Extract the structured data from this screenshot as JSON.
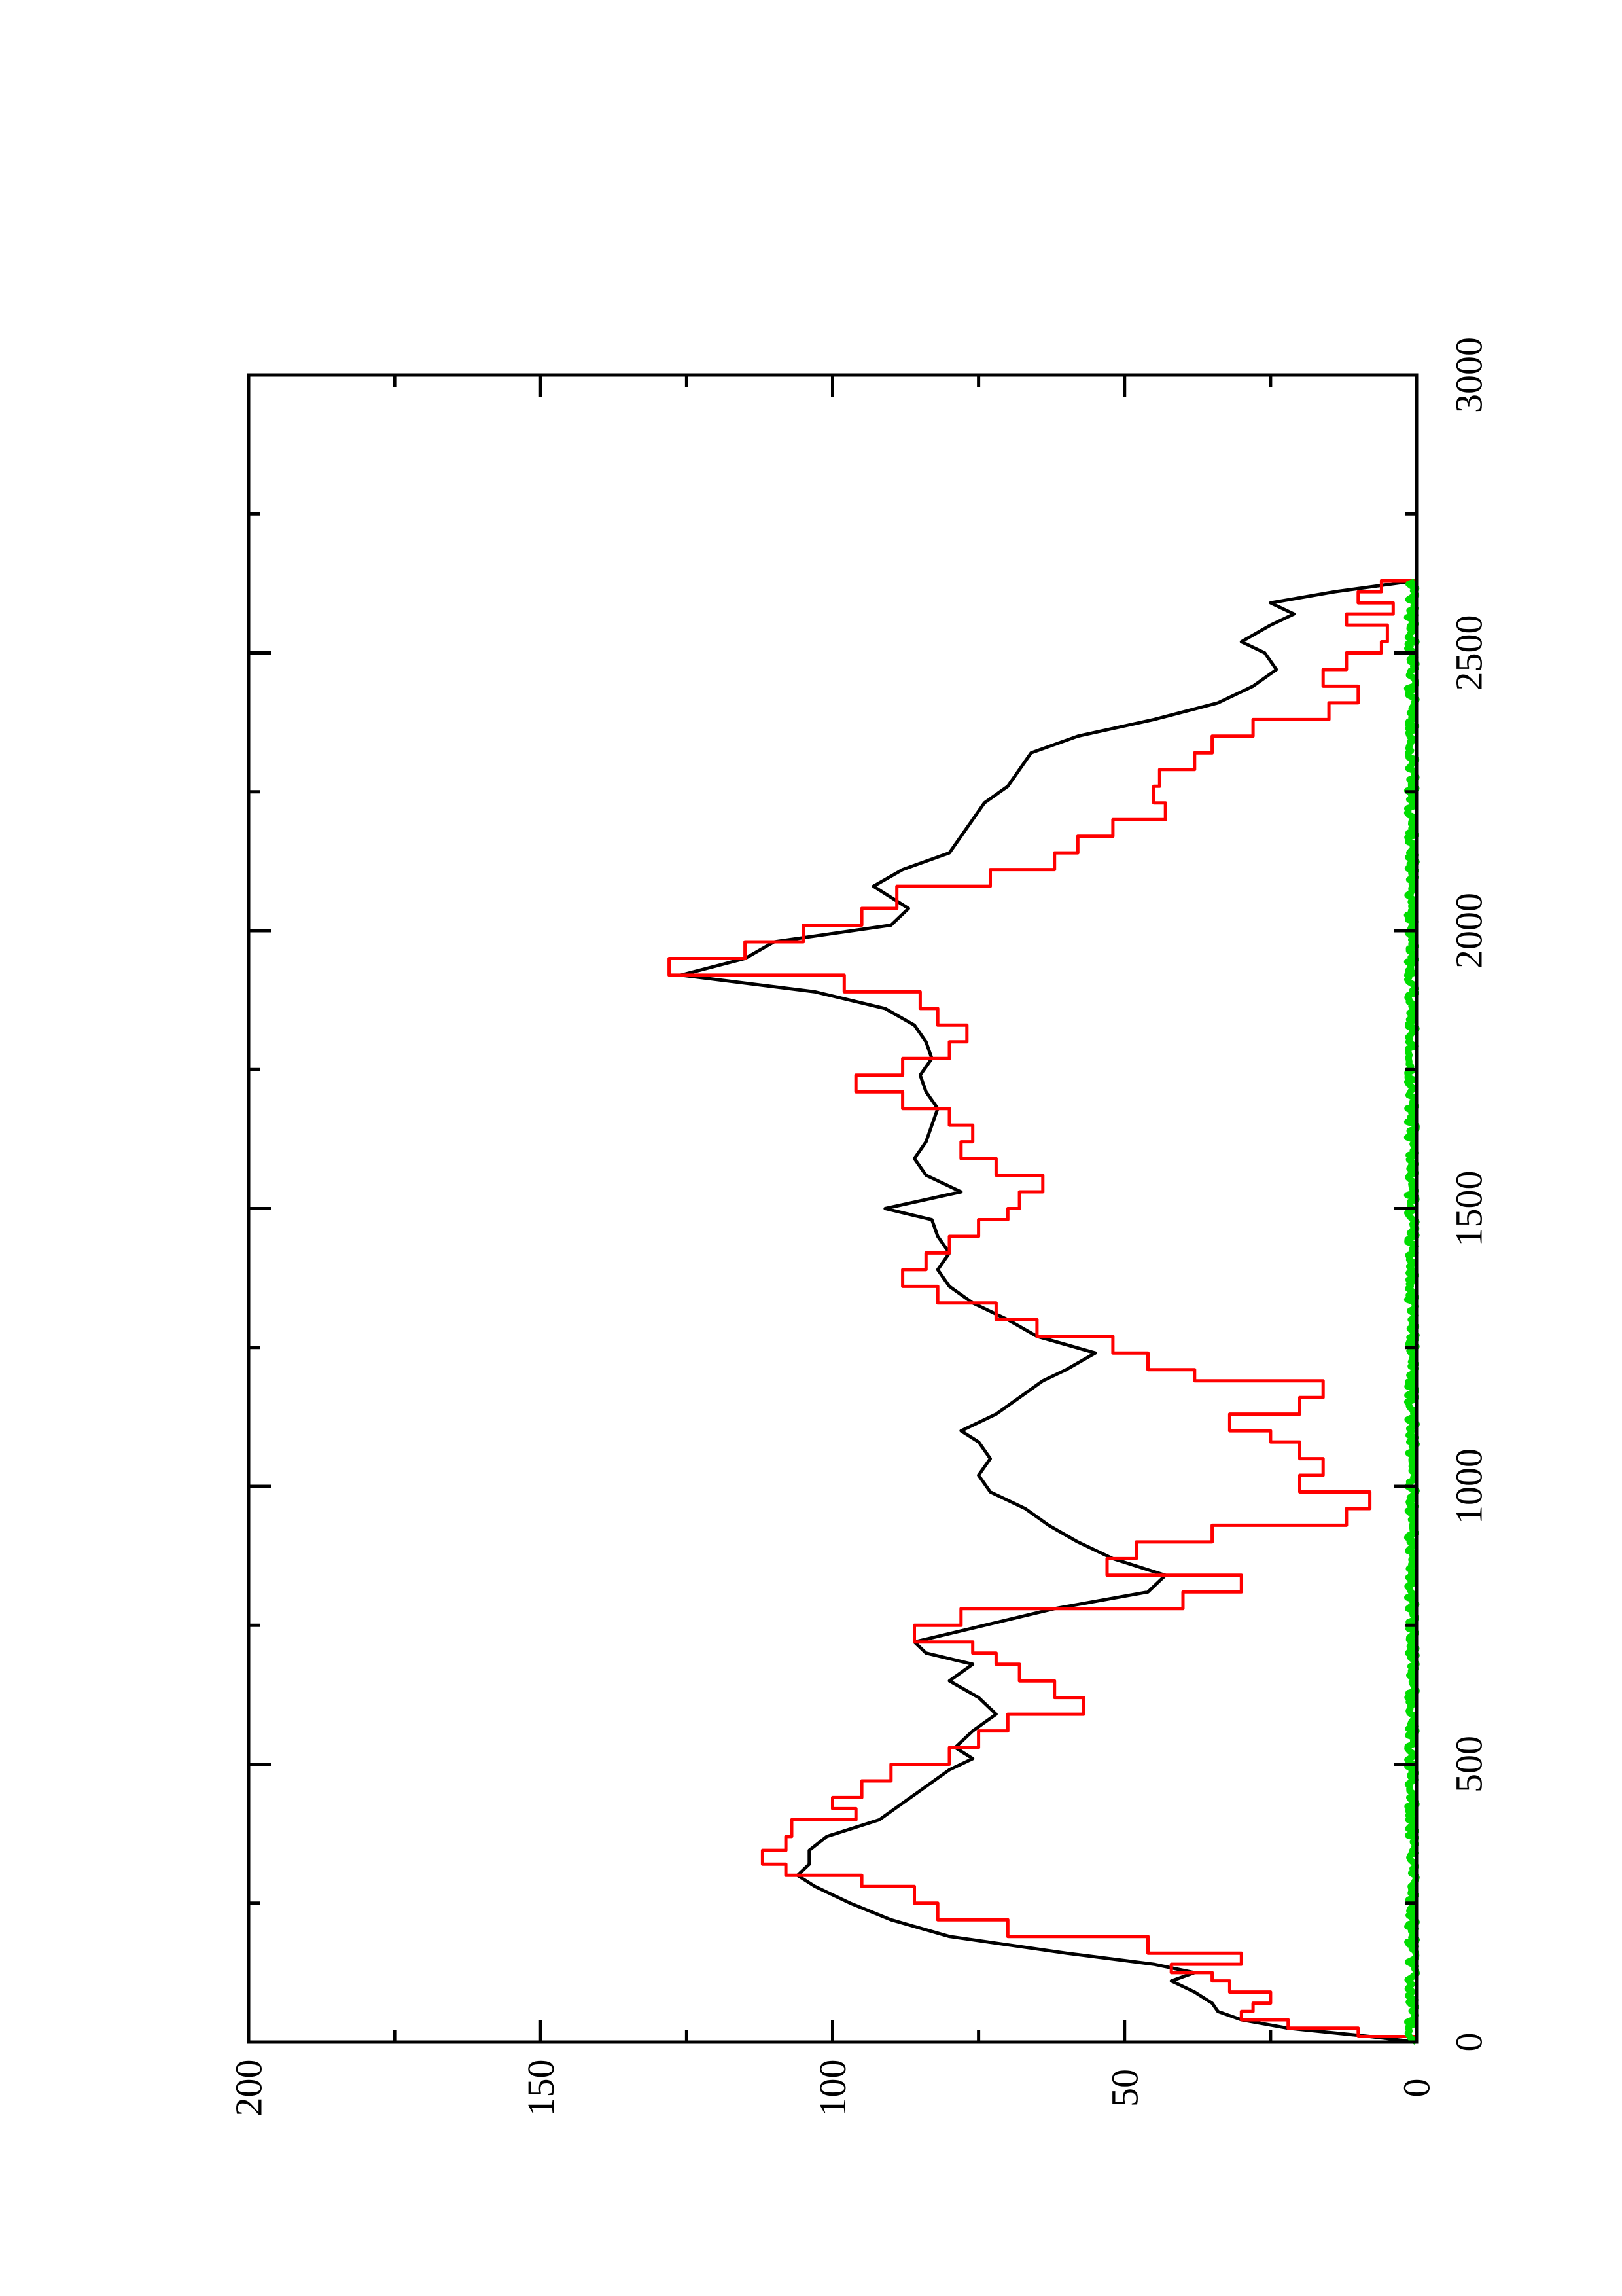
{
  "chart_data": {
    "type": "line",
    "orientation": "rotated 90 degrees counter-clockwise (x axis runs upward, y axis runs leftward)",
    "title": "",
    "xlabel": "",
    "ylabel": "",
    "xlim": [
      0,
      3000
    ],
    "ylim": [
      0,
      200
    ],
    "x_ticks": [
      0,
      500,
      1000,
      1500,
      2000,
      2500,
      3000
    ],
    "x_tick_labels": [
      "0",
      "500",
      "1000",
      "1500",
      "2000",
      "2500",
      "3000"
    ],
    "x_minor_ticks": [
      250,
      750,
      1250,
      1750,
      2250,
      2750
    ],
    "y_ticks": [
      0,
      50,
      100,
      150,
      200
    ],
    "y_tick_labels": [
      "0",
      "50",
      "100",
      "150",
      "200"
    ],
    "y_minor_ticks": [
      25,
      75,
      125,
      175
    ],
    "grid": false,
    "legend": "none",
    "series": [
      {
        "color": "#000000",
        "style": "jagged line",
        "x": [
          0,
          10,
          25,
          40,
          55,
          70,
          90,
          110,
          125,
          140,
          160,
          190,
          220,
          250,
          280,
          300,
          320,
          345,
          370,
          400,
          430,
          460,
          490,
          510,
          530,
          560,
          590,
          620,
          650,
          680,
          700,
          720,
          750,
          780,
          810,
          840,
          870,
          900,
          930,
          960,
          990,
          1020,
          1050,
          1080,
          1100,
          1130,
          1160,
          1190,
          1210,
          1240,
          1270,
          1300,
          1330,
          1360,
          1390,
          1420,
          1450,
          1480,
          1500,
          1530,
          1560,
          1590,
          1620,
          1650,
          1680,
          1710,
          1740,
          1770,
          1800,
          1830,
          1860,
          1890,
          1920,
          1950,
          1980,
          2010,
          2040,
          2080,
          2110,
          2140,
          2170,
          2200,
          2230,
          2260,
          2290,
          2320,
          2350,
          2380,
          2410,
          2440,
          2470,
          2500,
          2520,
          2550,
          2570,
          2590,
          2610,
          2630
        ],
        "y": [
          0,
          8,
          22,
          30,
          34,
          35,
          38,
          42,
          38,
          45,
          60,
          80,
          90,
          97,
          103,
          106,
          104,
          104,
          101,
          92,
          88,
          84,
          80,
          76,
          79,
          76,
          72,
          75,
          80,
          76,
          84,
          86,
          74,
          62,
          46,
          43,
          52,
          58,
          63,
          67,
          73,
          75,
          73,
          75,
          78,
          72,
          68,
          64,
          60,
          55,
          65,
          70,
          76,
          80,
          82,
          80,
          82,
          83,
          91,
          78,
          84,
          86,
          84,
          83,
          82,
          84,
          85,
          83,
          84,
          86,
          91,
          103,
          126,
          115,
          110,
          90,
          87,
          93,
          88,
          80,
          78,
          76,
          74,
          70,
          68,
          66,
          58,
          45,
          34,
          28,
          24,
          26,
          30,
          25,
          21,
          25,
          14,
          0
        ]
      },
      {
        "color": "#ff0000",
        "style": "step line",
        "x": [
          0,
          10,
          25,
          40,
          55,
          70,
          90,
          110,
          125,
          140,
          160,
          190,
          220,
          250,
          280,
          300,
          320,
          345,
          370,
          400,
          420,
          440,
          470,
          500,
          530,
          560,
          590,
          620,
          650,
          680,
          700,
          720,
          750,
          780,
          810,
          840,
          870,
          900,
          930,
          960,
          990,
          1020,
          1050,
          1080,
          1100,
          1130,
          1160,
          1190,
          1210,
          1240,
          1270,
          1300,
          1330,
          1360,
          1390,
          1420,
          1450,
          1480,
          1500,
          1530,
          1560,
          1590,
          1620,
          1650,
          1680,
          1710,
          1740,
          1770,
          1800,
          1830,
          1860,
          1890,
          1920,
          1950,
          1980,
          2010,
          2040,
          2080,
          2110,
          2140,
          2170,
          2200,
          2230,
          2260,
          2290,
          2320,
          2350,
          2380,
          2410,
          2440,
          2470,
          2500,
          2520,
          2550,
          2570,
          2590,
          2610,
          2630
        ],
        "y": [
          0,
          10,
          22,
          30,
          28,
          25,
          32,
          35,
          42,
          30,
          46,
          70,
          82,
          86,
          95,
          108,
          112,
          108,
          107,
          96,
          100,
          95,
          90,
          80,
          75,
          70,
          57,
          62,
          68,
          72,
          76,
          86,
          78,
          40,
          30,
          53,
          48,
          35,
          12,
          8,
          20,
          16,
          20,
          25,
          32,
          20,
          16,
          38,
          46,
          52,
          65,
          72,
          82,
          88,
          84,
          80,
          75,
          70,
          68,
          64,
          72,
          78,
          76,
          80,
          88,
          96,
          88,
          80,
          77,
          82,
          85,
          98,
          128,
          115,
          105,
          95,
          89,
          73,
          62,
          58,
          52,
          43,
          45,
          44,
          38,
          35,
          28,
          15,
          10,
          16,
          12,
          6,
          5,
          12,
          4,
          10,
          6,
          0
        ]
      },
      {
        "color": "#00dd00",
        "style": "noisy near-zero band",
        "x": [
          0,
          100,
          200,
          300,
          400,
          500,
          600,
          700,
          800,
          900,
          1000,
          1100,
          1200,
          1300,
          1400,
          1500,
          1600,
          1700,
          1800,
          1900,
          2000,
          2100,
          2200,
          2300,
          2400,
          2500,
          2600,
          2630
        ],
        "y": [
          0,
          0.5,
          0.5,
          0.5,
          0.5,
          0.5,
          0.5,
          0.5,
          0.5,
          0.5,
          0.5,
          0.5,
          0.5,
          0.5,
          0.5,
          0.5,
          0.5,
          0.5,
          0.5,
          0.5,
          0.5,
          0.5,
          0.5,
          0.5,
          0.5,
          0.5,
          0.5,
          0
        ]
      }
    ]
  }
}
